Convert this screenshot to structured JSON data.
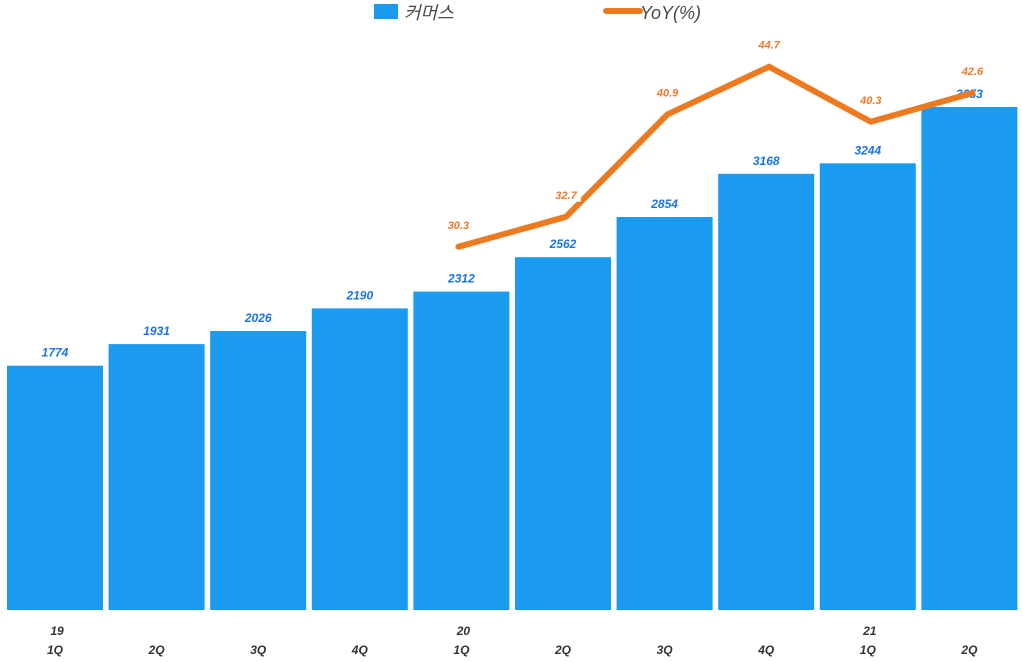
{
  "chart_data": {
    "type": "bar",
    "categories": [
      [
        "19",
        "1Q"
      ],
      [
        "",
        "2Q"
      ],
      [
        "",
        "3Q"
      ],
      [
        "",
        "4Q"
      ],
      [
        "20",
        "1Q"
      ],
      [
        "",
        "2Q"
      ],
      [
        "",
        "3Q"
      ],
      [
        "",
        "4Q"
      ],
      [
        "21",
        "1Q"
      ],
      [
        "",
        "2Q"
      ]
    ],
    "series": [
      {
        "name": "커머스",
        "type": "bar",
        "color": "#1a9bf0",
        "values": [
          1774,
          1931,
          2026,
          2190,
          2312,
          2562,
          2854,
          3168,
          3244,
          3653
        ]
      },
      {
        "name": "YoY(%)",
        "type": "line",
        "color": "#ee7a1f",
        "values": [
          null,
          null,
          null,
          null,
          30.3,
          32.7,
          40.9,
          44.7,
          40.3,
          42.6
        ]
      }
    ],
    "legend": "top-center",
    "grid": false
  }
}
